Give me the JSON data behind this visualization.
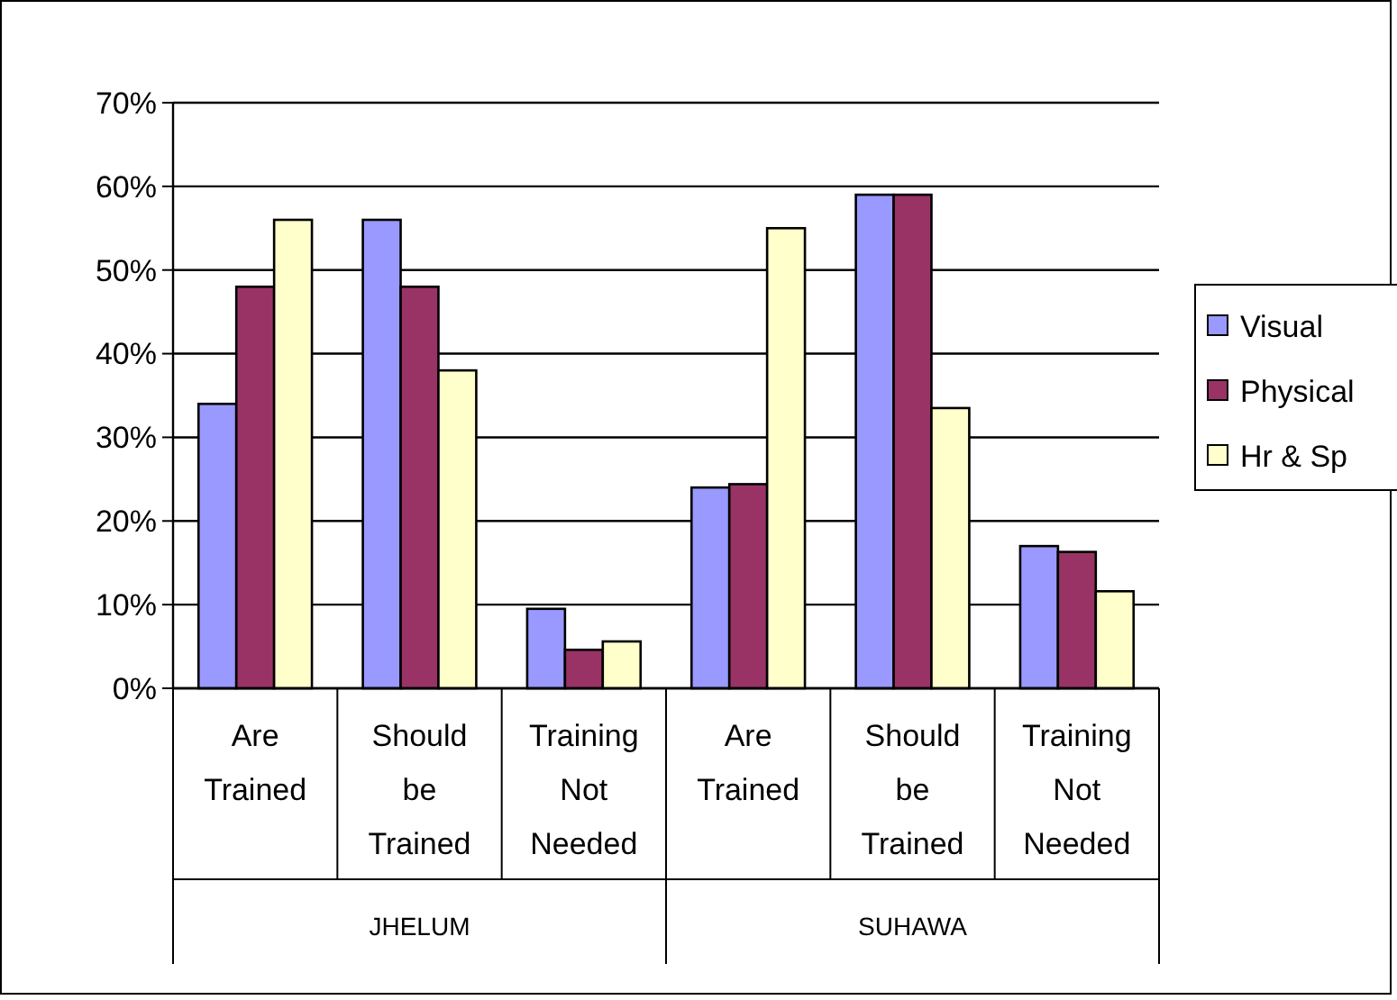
{
  "chart_data": {
    "type": "bar",
    "categories": [
      "Are Trained",
      "Should be Trained",
      "Training Not Needed",
      "Are Trained",
      "Should be Trained",
      "Training Not Needed"
    ],
    "series": [
      {
        "name": "Visual",
        "color": "#9999ff",
        "values": [
          34,
          56,
          9.5,
          24,
          59,
          17
        ]
      },
      {
        "name": "Physical",
        "color": "#993366",
        "values": [
          48,
          48,
          4.6,
          24.4,
          59,
          16.3
        ]
      },
      {
        "name": "Hr & Sp",
        "color": "#ffffcc",
        "values": [
          56,
          38,
          5.6,
          55,
          33.5,
          11.6
        ]
      }
    ],
    "ylim": [
      0,
      70
    ],
    "yticks": [
      {
        "value": 0,
        "label": "0%"
      },
      {
        "value": 10,
        "label": "10%"
      },
      {
        "value": 20,
        "label": "20%"
      },
      {
        "value": 30,
        "label": "30%"
      },
      {
        "value": 40,
        "label": "40%"
      },
      {
        "value": 50,
        "label": "50%"
      },
      {
        "value": 60,
        "label": "60%"
      },
      {
        "value": 70,
        "label": "70%"
      }
    ],
    "grid": "y",
    "legend": "right",
    "annotations": [
      "JHELUM",
      "SUHAWA"
    ]
  }
}
